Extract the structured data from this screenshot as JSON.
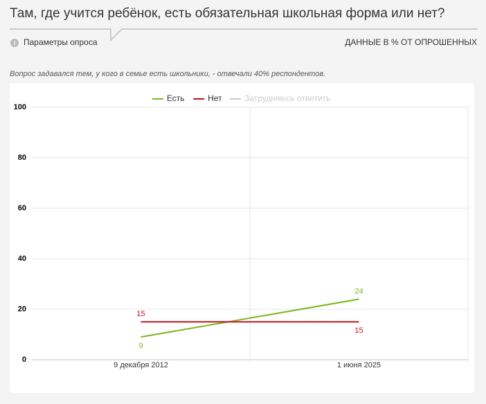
{
  "header": {
    "title": "Там, где учится ребёнок, есть обязательная школьная форма или нет?",
    "params": "Параметры опроса",
    "units": "ДАННЫЕ В % ОТ ОПРОШЕННЫХ"
  },
  "note": "Вопрос задавался тем, у кого в семье есть школьники, - отвечали 40% респондентов.",
  "chart_data": {
    "type": "line",
    "categories": [
      "9 декабря 2012",
      "1 июня 2025"
    ],
    "series": [
      {
        "name": "Есть",
        "color": "#7cb51f",
        "values": [
          9,
          24
        ],
        "visible": true
      },
      {
        "name": "Нет",
        "color": "#c0141b",
        "values": [
          15,
          15
        ],
        "visible": true
      },
      {
        "name": "Затрудняюсь ответить",
        "color": "#c8c8c8",
        "values": [
          null,
          null
        ],
        "visible": false
      }
    ],
    "ylim": [
      0,
      100
    ],
    "yticks": [
      0,
      20,
      40,
      60,
      80,
      100
    ],
    "grid": true,
    "data_labels": true
  }
}
